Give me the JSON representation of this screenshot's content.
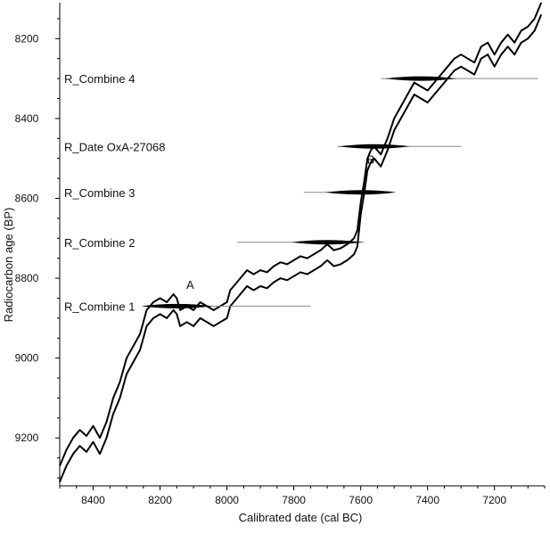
{
  "chart_data": {
    "type": "line",
    "xlabel": "Calibrated date (cal BC)",
    "ylabel": "Radiocarbon age (BP)",
    "xlim": [
      8500,
      7050
    ],
    "ylim": [
      8110,
      9320
    ],
    "x_reversed": true,
    "y_reversed": true,
    "xticks": [
      8400,
      8200,
      8000,
      7800,
      7600,
      7400,
      7200
    ],
    "yticks": [
      8200,
      8400,
      8600,
      8800,
      9000,
      9200
    ],
    "grid": false,
    "legend": "none",
    "series": [
      {
        "x": [
          8500,
          8480,
          8460,
          8440,
          8420,
          8400,
          8380,
          8360,
          8340,
          8320,
          8300,
          8280,
          8260,
          8250,
          8240,
          8220,
          8200,
          8180,
          8160,
          8150,
          8140,
          8120,
          8100,
          8080,
          8060,
          8040,
          8020,
          8000,
          7990,
          7980,
          7960,
          7940,
          7920,
          7900,
          7880,
          7860,
          7840,
          7820,
          7800,
          7780,
          7760,
          7740,
          7720,
          7700,
          7680,
          7660,
          7640,
          7620,
          7610,
          7600,
          7590,
          7580,
          7570,
          7560,
          7540,
          7520,
          7500,
          7480,
          7460,
          7440,
          7420,
          7400,
          7380,
          7360,
          7340,
          7320,
          7300,
          7280,
          7260,
          7240,
          7220,
          7200,
          7180,
          7160,
          7140,
          7120,
          7100,
          7080,
          7060
        ],
        "y": [
          9270,
          9230,
          9200,
          9180,
          9195,
          9170,
          9200,
          9160,
          9100,
          9060,
          9000,
          8970,
          8940,
          8910,
          8880,
          8860,
          8850,
          8860,
          8840,
          8850,
          8880,
          8870,
          8880,
          8860,
          8870,
          8880,
          8870,
          8860,
          8830,
          8820,
          8800,
          8780,
          8790,
          8780,
          8785,
          8770,
          8760,
          8765,
          8755,
          8745,
          8750,
          8740,
          8730,
          8715,
          8730,
          8725,
          8715,
          8700,
          8680,
          8610,
          8560,
          8500,
          8480,
          8470,
          8490,
          8450,
          8400,
          8370,
          8340,
          8310,
          8320,
          8330,
          8310,
          8290,
          8270,
          8250,
          8240,
          8250,
          8260,
          8220,
          8210,
          8240,
          8210,
          8190,
          8210,
          8180,
          8170,
          8150,
          8110
        ]
      },
      {
        "x": [
          8500,
          8480,
          8460,
          8440,
          8420,
          8400,
          8380,
          8360,
          8340,
          8320,
          8300,
          8280,
          8260,
          8250,
          8240,
          8220,
          8200,
          8180,
          8160,
          8150,
          8140,
          8120,
          8100,
          8080,
          8060,
          8040,
          8020,
          8000,
          7990,
          7980,
          7960,
          7940,
          7920,
          7900,
          7880,
          7860,
          7840,
          7820,
          7800,
          7780,
          7760,
          7740,
          7720,
          7700,
          7680,
          7660,
          7640,
          7620,
          7610,
          7600,
          7590,
          7580,
          7570,
          7560,
          7540,
          7520,
          7500,
          7480,
          7460,
          7440,
          7420,
          7400,
          7380,
          7360,
          7340,
          7320,
          7300,
          7280,
          7260,
          7240,
          7220,
          7200,
          7180,
          7160,
          7140,
          7120,
          7100,
          7080,
          7060
        ],
        "y": [
          9310,
          9270,
          9240,
          9220,
          9235,
          9210,
          9240,
          9200,
          9140,
          9100,
          9040,
          9010,
          8980,
          8950,
          8920,
          8900,
          8890,
          8900,
          8880,
          8890,
          8920,
          8910,
          8920,
          8900,
          8910,
          8920,
          8910,
          8900,
          8870,
          8860,
          8840,
          8820,
          8830,
          8820,
          8825,
          8810,
          8800,
          8805,
          8795,
          8785,
          8790,
          8780,
          8770,
          8755,
          8770,
          8765,
          8755,
          8740,
          8720,
          8640,
          8590,
          8530,
          8510,
          8500,
          8520,
          8480,
          8430,
          8400,
          8370,
          8340,
          8350,
          8360,
          8340,
          8320,
          8300,
          8280,
          8270,
          8280,
          8290,
          8250,
          8240,
          8270,
          8240,
          8220,
          8240,
          8210,
          8200,
          8180,
          8140
        ]
      }
    ],
    "labels": [
      {
        "text": "R_Combine 4",
        "y": 8300,
        "range": [
          7540,
          7070
        ],
        "peak": 7420
      },
      {
        "text": "R_Date OxA-27068",
        "y": 8470,
        "range": [
          7670,
          7300
        ],
        "peak": 7560
      },
      {
        "text": "R_Combine 3",
        "y": 8585,
        "range": [
          7770,
          7520
        ],
        "peak": 7600
      },
      {
        "text": "R_Combine 2",
        "y": 8710,
        "range": [
          7970,
          7590
        ],
        "peak": 7700
      },
      {
        "text": "R_Combine 1",
        "y": 8870,
        "range": [
          8220,
          7750
        ],
        "peak": 8150
      }
    ],
    "annotations": [
      {
        "text": "A",
        "x": 8110,
        "y": 8827
      },
      {
        "text": "B",
        "x": 7570,
        "y": 8513
      }
    ]
  }
}
